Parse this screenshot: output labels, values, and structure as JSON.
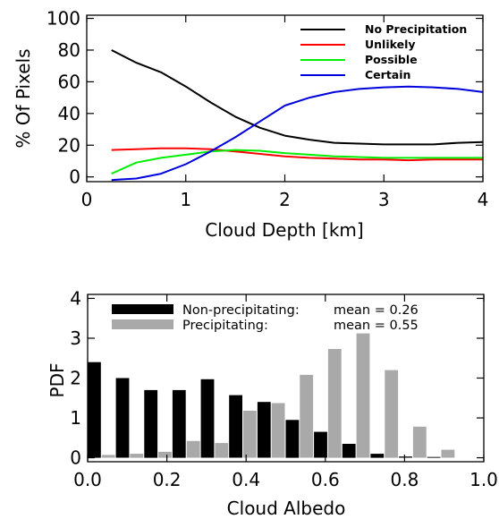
{
  "chart_data": [
    {
      "type": "line",
      "title": "",
      "xlabel": "Cloud Depth [km]",
      "ylabel": "% Of Pixels",
      "xlim": [
        0,
        4
      ],
      "ylim": [
        -3,
        102
      ],
      "xticks": [
        0,
        1,
        2,
        3,
        4
      ],
      "xtick_labels": [
        "0",
        "1",
        "2",
        "3",
        "4"
      ],
      "yticks": [
        0,
        20,
        40,
        60,
        80,
        100
      ],
      "ytick_labels": [
        "0",
        "20",
        "40",
        "60",
        "80",
        "100"
      ],
      "grid": false,
      "legend_position": "top-right",
      "x": [
        0.25,
        0.5,
        0.75,
        1.0,
        1.25,
        1.5,
        1.75,
        2.0,
        2.25,
        2.5,
        2.75,
        3.0,
        3.25,
        3.5,
        3.75,
        4.0
      ],
      "series": [
        {
          "name": "No Precipitation",
          "color": "#000000",
          "values": [
            80,
            72,
            66,
            57,
            47,
            38,
            31,
            26,
            23.5,
            21.5,
            21,
            20.5,
            20.5,
            20.5,
            21.5,
            22
          ]
        },
        {
          "name": "Unlikely",
          "color": "#ff0000",
          "values": [
            17,
            17.5,
            18,
            18,
            17.5,
            16,
            14.5,
            13,
            12,
            11.5,
            11,
            11,
            10.5,
            11,
            11,
            11
          ]
        },
        {
          "name": "Possible",
          "color": "#00ee00",
          "values": [
            2,
            9,
            12,
            14,
            16,
            17,
            16.5,
            15,
            14,
            13,
            12.5,
            12,
            12,
            12,
            12,
            12
          ]
        },
        {
          "name": "Certain",
          "color": "#0000dd",
          "values": [
            -2,
            -1,
            2,
            8,
            16,
            25,
            35,
            45,
            50,
            53.5,
            55.5,
            56.5,
            57,
            56.5,
            55.5,
            53.5
          ]
        }
      ]
    },
    {
      "type": "bar",
      "title": "",
      "xlabel": "Cloud Albedo",
      "ylabel": "PDF",
      "xlim": [
        0,
        1
      ],
      "ylim": [
        -0.1,
        4.1
      ],
      "xticks": [
        0,
        0.2,
        0.4,
        0.6,
        0.8,
        1.0
      ],
      "xtick_labels": [
        "0.0",
        "0.2",
        "0.4",
        "0.6",
        "0.8",
        "1.0"
      ],
      "yticks": [
        0,
        1,
        2,
        3,
        4
      ],
      "ytick_labels": [
        "0",
        "1",
        "2",
        "3",
        "4"
      ],
      "grid": false,
      "legend_position": "top-left",
      "bin_width": 0.0714,
      "x": [
        0.0,
        0.0714,
        0.1429,
        0.2143,
        0.2857,
        0.3571,
        0.4286,
        0.5,
        0.5714,
        0.6429,
        0.7143,
        0.7857,
        0.8571,
        0.9286
      ],
      "series": [
        {
          "name": "Non-precipitating:",
          "stat": "mean = 0.26",
          "color": "#000000",
          "values": [
            2.4,
            2.0,
            1.7,
            1.7,
            1.97,
            1.57,
            1.4,
            0.95,
            0.65,
            0.35,
            0.1,
            0.03,
            0.02,
            0
          ]
        },
        {
          "name": "Precipitating:",
          "stat": "mean = 0.55",
          "color": "#a9a9a9",
          "values": [
            0.07,
            0.1,
            0.15,
            0.42,
            0.37,
            1.18,
            1.37,
            2.08,
            2.73,
            3.12,
            2.2,
            0.78,
            0.2,
            0
          ]
        }
      ]
    }
  ]
}
